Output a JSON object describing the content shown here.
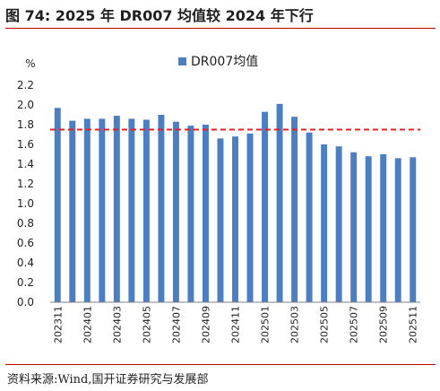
{
  "figure": {
    "title": "图 74:  2025 年 DR007 均值较 2024 年下行",
    "source": "资料来源:Wind,国开证券研究与发展部"
  },
  "colors": {
    "bar": "#4a7ec5",
    "reference_line": "#e8201f",
    "axis": "#808080",
    "rule": "#c00000"
  },
  "chart_data": {
    "type": "bar",
    "title": "",
    "xlabel": "",
    "ylabel": "%",
    "ylim": [
      0,
      2.2
    ],
    "yticks": [
      0.0,
      0.2,
      0.4,
      0.6,
      0.8,
      1.0,
      1.2,
      1.4,
      1.6,
      1.8,
      2.0,
      2.2
    ],
    "ytick_labels": [
      "0.0",
      "0.2",
      "0.4",
      "0.6",
      "0.8",
      "1.0",
      "1.2",
      "1.4",
      "1.6",
      "1.8",
      "2.0",
      "2.2"
    ],
    "grid": false,
    "legend": "top-center",
    "categories": [
      "202311",
      "202312",
      "202401",
      "202402",
      "202403",
      "202404",
      "202405",
      "202406",
      "202407",
      "202408",
      "202409",
      "202410",
      "202411",
      "202412",
      "202501",
      "202502",
      "202503",
      "202504",
      "202505",
      "202506",
      "202507",
      "202508",
      "202509",
      "202510",
      "202511"
    ],
    "xtick_labels": [
      "202311",
      "",
      "202401",
      "",
      "202403",
      "",
      "202405",
      "",
      "202407",
      "",
      "202409",
      "",
      "202411",
      "",
      "202501",
      "",
      "202503",
      "",
      "202505",
      "",
      "202507",
      "",
      "202509",
      "",
      "202511"
    ],
    "series": [
      {
        "name": "DR007均值",
        "values": [
          1.97,
          1.84,
          1.86,
          1.86,
          1.89,
          1.86,
          1.85,
          1.9,
          1.83,
          1.79,
          1.8,
          1.66,
          1.68,
          1.71,
          1.93,
          2.01,
          1.88,
          1.72,
          1.6,
          1.58,
          1.52,
          1.48,
          1.5,
          1.46,
          1.47
        ]
      }
    ],
    "reference_line": {
      "value": 1.75
    }
  }
}
